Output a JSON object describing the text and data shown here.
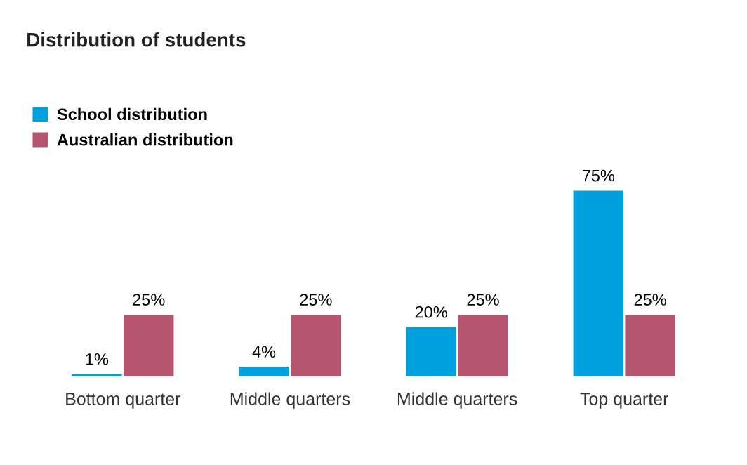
{
  "chart_data": {
    "type": "bar",
    "title": "Distribution of students",
    "categories": [
      "Bottom quarter",
      "Middle quarters",
      "Middle quarters",
      "Top quarter"
    ],
    "series": [
      {
        "name": "School distribution",
        "color": "#00a0dc",
        "values": [
          1,
          4,
          20,
          75
        ],
        "value_labels": [
          "1%",
          "4%",
          "20%",
          "75%"
        ]
      },
      {
        "name": "Australian distribution",
        "color": "#b5566e",
        "values": [
          25,
          25,
          25,
          25
        ],
        "value_labels": [
          "25%",
          "25%",
          "25%",
          "25%"
        ]
      }
    ],
    "legend": "top left",
    "grid": false
  }
}
